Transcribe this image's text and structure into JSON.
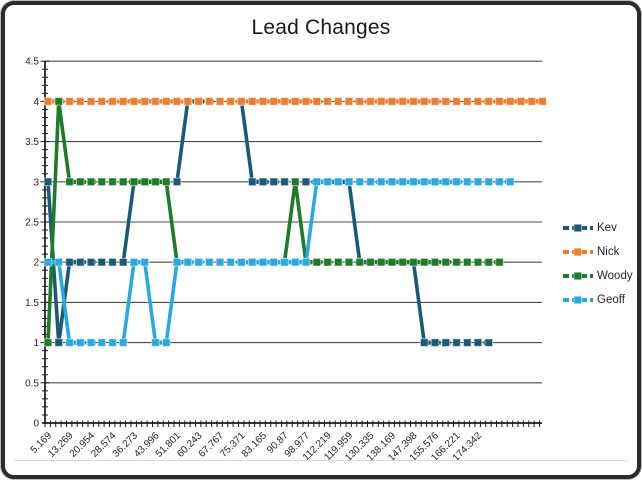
{
  "title": "Lead Changes",
  "chart_data": {
    "type": "line",
    "title": "Lead Changes",
    "line_style": "thick-dashed-with-square-markers",
    "grid": "horizontal",
    "legend_position": "right",
    "ylim": [
      0,
      4.5
    ],
    "y_major_step": 0.5,
    "y_minor_step": 0.1,
    "y_ticks": [
      "0",
      "0.5",
      "1",
      "1.5",
      "2",
      "2.5",
      "3",
      "3.5",
      "4",
      "4.5"
    ],
    "categories": [
      "5.169",
      "13.269",
      "20.954",
      "28.574",
      "36.273",
      "43.996",
      "51.801",
      "60.243",
      "67.767",
      "75.371",
      "83.165",
      "90.87",
      "98.977",
      "112.219",
      "119.959",
      "130.335",
      "138.169",
      "147.398",
      "155.576",
      "166.221",
      "174.342"
    ],
    "points_per_category": 2,
    "note": "x labels mark every 2nd data point; series end at different point counts",
    "series": [
      {
        "name": "Kev",
        "color": "#1B5A77",
        "values": [
          3,
          1,
          2,
          2,
          2,
          2,
          2,
          2,
          3,
          3,
          3,
          3,
          3,
          4,
          4,
          4,
          4,
          4,
          4,
          3,
          3,
          3,
          3,
          3,
          3,
          3,
          3,
          3,
          3,
          2,
          2,
          2,
          2,
          2,
          2,
          1,
          1,
          1,
          1,
          1,
          1,
          1
        ]
      },
      {
        "name": "Nick",
        "color": "#ED7D31",
        "values": [
          4,
          4,
          4,
          4,
          4,
          4,
          4,
          4,
          4,
          4,
          4,
          4,
          4,
          4,
          4,
          4,
          4,
          4,
          4,
          4,
          4,
          4,
          4,
          4,
          4,
          4,
          4,
          4,
          4,
          4,
          4,
          4,
          4,
          4,
          4,
          4,
          4,
          4,
          4,
          4,
          4,
          4,
          4,
          4,
          4,
          4,
          4
        ]
      },
      {
        "name": "Woody",
        "color": "#1E7B28",
        "values": [
          1,
          4,
          3,
          3,
          3,
          3,
          3,
          3,
          3,
          3,
          3,
          3,
          2,
          2,
          2,
          2,
          2,
          2,
          2,
          2,
          2,
          2,
          2,
          3,
          2,
          2,
          2,
          2,
          2,
          2,
          2,
          2,
          2,
          2,
          2,
          2,
          2,
          2,
          2,
          2,
          2,
          2,
          2
        ]
      },
      {
        "name": "Geoff",
        "color": "#29A9E0",
        "values": [
          2,
          2,
          1,
          1,
          1,
          1,
          1,
          1,
          2,
          2,
          1,
          1,
          2,
          2,
          2,
          2,
          2,
          2,
          2,
          2,
          2,
          2,
          2,
          2,
          2,
          3,
          3,
          3,
          3,
          3,
          3,
          3,
          3,
          3,
          3,
          3,
          3,
          3,
          3,
          3,
          3,
          3,
          3,
          3
        ]
      }
    ]
  }
}
